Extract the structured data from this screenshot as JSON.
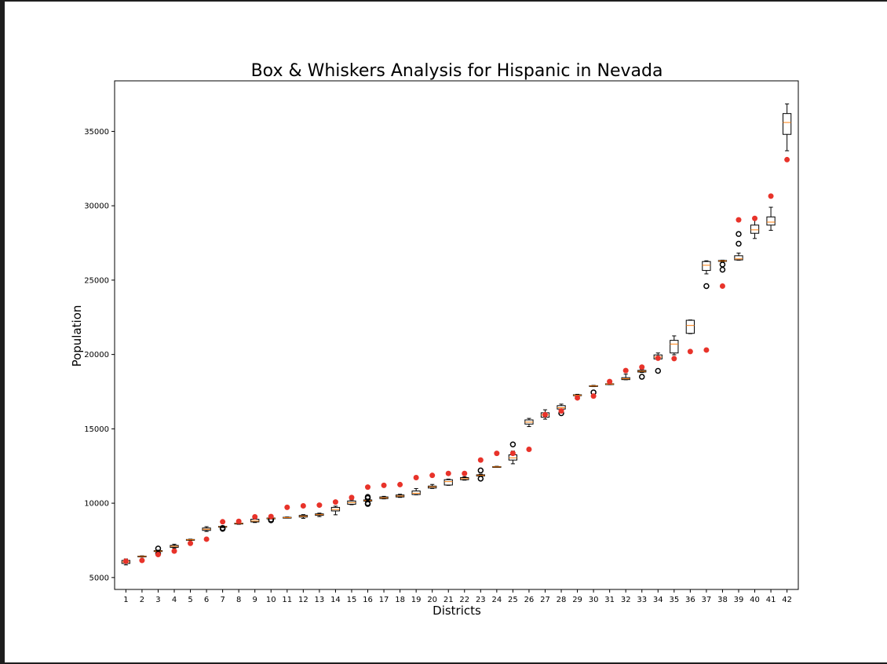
{
  "chart_data": {
    "type": "box",
    "title": "Box & Whiskers Analysis for Hispanic in Nevada",
    "xlabel": "Districts",
    "ylabel": "Population",
    "ylim": [
      4200,
      38400
    ],
    "yticks": [
      5000,
      10000,
      15000,
      20000,
      25000,
      30000,
      35000
    ],
    "grid": false,
    "categories": [
      "1",
      "2",
      "3",
      "4",
      "5",
      "6",
      "7",
      "8",
      "9",
      "10",
      "11",
      "12",
      "13",
      "14",
      "15",
      "16",
      "17",
      "18",
      "19",
      "20",
      "21",
      "22",
      "23",
      "24",
      "25",
      "26",
      "27",
      "28",
      "29",
      "30",
      "31",
      "32",
      "33",
      "34",
      "35",
      "36",
      "37",
      "38",
      "39",
      "40",
      "41",
      "42"
    ],
    "boxes": [
      {
        "district": "1",
        "wl": 5850,
        "q1": 5950,
        "med": 6050,
        "q3": 6150,
        "wh": 6250,
        "fliers": []
      },
      {
        "district": "2",
        "wl": 6380,
        "q1": 6400,
        "med": 6420,
        "q3": 6440,
        "wh": 6460,
        "fliers": []
      },
      {
        "district": "3",
        "wl": 6720,
        "q1": 6750,
        "med": 6780,
        "q3": 6810,
        "wh": 6840,
        "fliers": [
          6600,
          6950
        ]
      },
      {
        "district": "4",
        "wl": 6980,
        "q1": 7030,
        "med": 7100,
        "q3": 7160,
        "wh": 7240,
        "fliers": []
      },
      {
        "district": "5",
        "wl": 7500,
        "q1": 7520,
        "med": 7540,
        "q3": 7560,
        "wh": 7580,
        "fliers": []
      },
      {
        "district": "6",
        "wl": 8100,
        "q1": 8170,
        "med": 8250,
        "q3": 8330,
        "wh": 8420,
        "fliers": []
      },
      {
        "district": "7",
        "wl": 8360,
        "q1": 8400,
        "med": 8420,
        "q3": 8440,
        "wh": 8470,
        "fliers": [
          8280,
          8330
        ]
      },
      {
        "district": "8",
        "wl": 8580,
        "q1": 8600,
        "med": 8640,
        "q3": 8660,
        "wh": 8690,
        "fliers": []
      },
      {
        "district": "9",
        "wl": 8700,
        "q1": 8740,
        "med": 8800,
        "q3": 8920,
        "wh": 8960,
        "fliers": []
      },
      {
        "district": "10",
        "wl": 8940,
        "q1": 8960,
        "med": 8980,
        "q3": 9000,
        "wh": 9020,
        "fliers": [
          8850,
          8900
        ]
      },
      {
        "district": "11",
        "wl": 9000,
        "q1": 9010,
        "med": 9030,
        "q3": 9050,
        "wh": 9070,
        "fliers": []
      },
      {
        "district": "12",
        "wl": 8980,
        "q1": 9070,
        "med": 9120,
        "q3": 9180,
        "wh": 9230,
        "fliers": []
      },
      {
        "district": "13",
        "wl": 9100,
        "q1": 9180,
        "med": 9230,
        "q3": 9280,
        "wh": 9330,
        "fliers": []
      },
      {
        "district": "14",
        "wl": 9220,
        "q1": 9480,
        "med": 9580,
        "q3": 9720,
        "wh": 9800,
        "fliers": []
      },
      {
        "district": "15",
        "wl": 9900,
        "q1": 9930,
        "med": 10040,
        "q3": 10150,
        "wh": 10220,
        "fliers": []
      },
      {
        "district": "16",
        "wl": 10100,
        "q1": 10140,
        "med": 10180,
        "q3": 10220,
        "wh": 10260,
        "fliers": [
          9950,
          10000,
          10350,
          10420
        ]
      },
      {
        "district": "17",
        "wl": 10290,
        "q1": 10310,
        "med": 10360,
        "q3": 10420,
        "wh": 10460,
        "fliers": []
      },
      {
        "district": "18",
        "wl": 10390,
        "q1": 10420,
        "med": 10480,
        "q3": 10550,
        "wh": 10600,
        "fliers": []
      },
      {
        "district": "19",
        "wl": 10560,
        "q1": 10580,
        "med": 10670,
        "q3": 10820,
        "wh": 10980,
        "fliers": []
      },
      {
        "district": "20",
        "wl": 10990,
        "q1": 11020,
        "med": 11100,
        "q3": 11150,
        "wh": 11260,
        "fliers": []
      },
      {
        "district": "21",
        "wl": 11200,
        "q1": 11220,
        "med": 11450,
        "q3": 11580,
        "wh": 11620,
        "fliers": []
      },
      {
        "district": "22",
        "wl": 11550,
        "q1": 11580,
        "med": 11650,
        "q3": 11720,
        "wh": 11780,
        "fliers": []
      },
      {
        "district": "23",
        "wl": 11800,
        "q1": 11830,
        "med": 11870,
        "q3": 11910,
        "wh": 11950,
        "fliers": [
          11650,
          12200
        ]
      },
      {
        "district": "24",
        "wl": 12420,
        "q1": 12430,
        "med": 12440,
        "q3": 12460,
        "wh": 12480,
        "fliers": []
      },
      {
        "district": "25",
        "wl": 12650,
        "q1": 12900,
        "med": 13050,
        "q3": 13250,
        "wh": 13500,
        "fliers": [
          13950
        ]
      },
      {
        "district": "26",
        "wl": 15150,
        "q1": 15320,
        "med": 15450,
        "q3": 15600,
        "wh": 15700,
        "fliers": []
      },
      {
        "district": "27",
        "wl": 15650,
        "q1": 15780,
        "med": 15930,
        "q3": 16080,
        "wh": 16280,
        "fliers": []
      },
      {
        "district": "28",
        "wl": 16250,
        "q1": 16330,
        "med": 16420,
        "q3": 16560,
        "wh": 16660,
        "fliers": [
          16050
        ]
      },
      {
        "district": "29",
        "wl": 17200,
        "q1": 17230,
        "med": 17260,
        "q3": 17290,
        "wh": 17320,
        "fliers": []
      },
      {
        "district": "30",
        "wl": 17840,
        "q1": 17860,
        "med": 17880,
        "q3": 17900,
        "wh": 17920,
        "fliers": [
          17450
        ]
      },
      {
        "district": "31",
        "wl": 17970,
        "q1": 17990,
        "med": 18010,
        "q3": 18030,
        "wh": 18050,
        "fliers": []
      },
      {
        "district": "32",
        "wl": 18300,
        "q1": 18310,
        "med": 18370,
        "q3": 18440,
        "wh": 18680,
        "fliers": []
      },
      {
        "district": "33",
        "wl": 18790,
        "q1": 18820,
        "med": 18870,
        "q3": 18930,
        "wh": 19000,
        "fliers": [
          18500
        ]
      },
      {
        "district": "34",
        "wl": 19680,
        "q1": 19700,
        "med": 19830,
        "q3": 19970,
        "wh": 20100,
        "fliers": [
          18900
        ]
      },
      {
        "district": "35",
        "wl": 19980,
        "q1": 20100,
        "med": 20700,
        "q3": 20950,
        "wh": 21250,
        "fliers": []
      },
      {
        "district": "36",
        "wl": 21400,
        "q1": 21420,
        "med": 21950,
        "q3": 22300,
        "wh": 22320,
        "fliers": []
      },
      {
        "district": "37",
        "wl": 25420,
        "q1": 25650,
        "med": 26000,
        "q3": 26250,
        "wh": 26300,
        "fliers": [
          24600
        ]
      },
      {
        "district": "38",
        "wl": 26240,
        "q1": 26260,
        "med": 26290,
        "q3": 26320,
        "wh": 26340,
        "fliers": [
          26050,
          25700
        ]
      },
      {
        "district": "39",
        "wl": 26340,
        "q1": 26360,
        "med": 26430,
        "q3": 26640,
        "wh": 26820,
        "fliers": [
          27450,
          28100
        ]
      },
      {
        "district": "40",
        "wl": 27800,
        "q1": 28150,
        "med": 28380,
        "q3": 28700,
        "wh": 29050,
        "fliers": []
      },
      {
        "district": "41",
        "wl": 28350,
        "q1": 28700,
        "med": 28900,
        "q3": 29250,
        "wh": 29900,
        "fliers": []
      },
      {
        "district": "42",
        "wl": 33700,
        "q1": 34800,
        "med": 35600,
        "q3": 36200,
        "wh": 36850,
        "fliers": []
      }
    ],
    "red_points": [
      6100,
      6150,
      6550,
      6780,
      7300,
      7580,
      8750,
      8780,
      9080,
      9100,
      9720,
      9820,
      9870,
      10080,
      10380,
      11080,
      11200,
      11250,
      11720,
      11870,
      12000,
      12000,
      12900,
      13350,
      13350,
      13620,
      15950,
      16200,
      17080,
      17200,
      18180,
      18920,
      19150,
      19750,
      19720,
      20200,
      20300,
      24600,
      29050,
      29150,
      30650,
      33100
    ],
    "colors": {
      "box_edge": "#000000",
      "median": "#ff7f0e",
      "flier_edge": "#000000",
      "red_point": "#e8332a"
    }
  }
}
